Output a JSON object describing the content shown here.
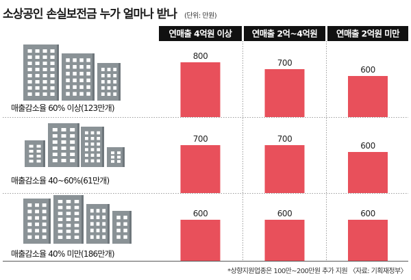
{
  "title": "소상공인 손실보전금 누가 얼마나 받나",
  "unit": "(단위: 만원)",
  "footnote": "*상향지원업종은 100만~200만원 추가 지원 〈자료: 기획재정부〉",
  "colors": {
    "bar": "#e8505b",
    "header": "#111111",
    "building": "#8a9296",
    "building_dark": "#6e767b",
    "window": "#ffffff"
  },
  "chart_data": {
    "type": "bar",
    "title": "소상공인 손실보전금 누가 얼마나 받나",
    "unit": "(단위: 만원)",
    "categories": [
      "연매출 4억원 이상",
      "연매출 2억~4억원",
      "연매출 2억원 미만"
    ],
    "series": [
      {
        "name": "매출감소율 60% 이상(123만개)",
        "values": [
          800,
          700,
          600
        ]
      },
      {
        "name": "매출감소율 40~60%(61만개)",
        "values": [
          700,
          700,
          600
        ]
      },
      {
        "name": "매출감소율 40% 미만(186만개)",
        "values": [
          600,
          600,
          600
        ]
      }
    ]
  }
}
